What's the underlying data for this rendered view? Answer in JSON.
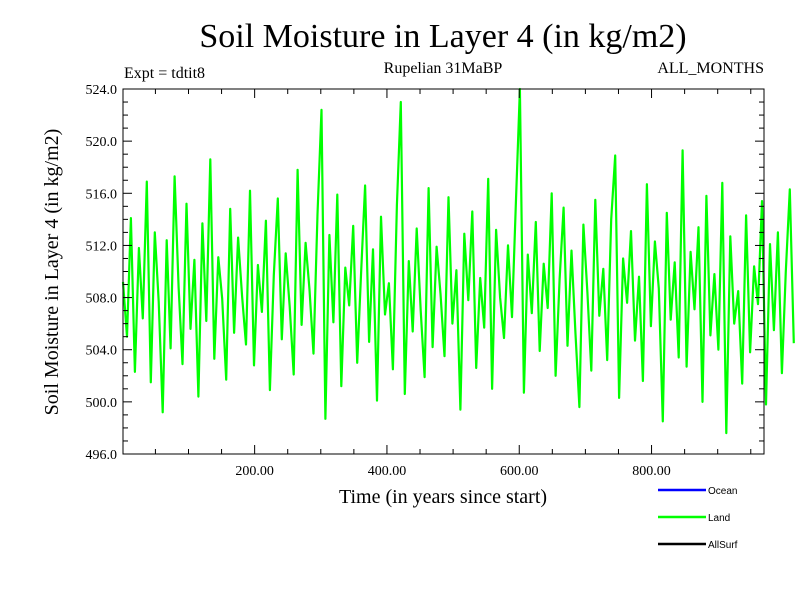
{
  "chart_data": {
    "type": "line",
    "title": "Soil Moisture in Layer 4 (in kg/m2)",
    "subtitle_left": "Expt = tdtit8",
    "subtitle_center": "Rupelian  31MaBP",
    "subtitle_right": "ALL_MONTHS",
    "xlabel": "Time (in years since start)",
    "ylabel": "Soil Moisture in Layer 4 (in kg/m2)",
    "xlim": [
      1,
      970
    ],
    "ylim": [
      496.0,
      524.0
    ],
    "x_ticks": [
      200,
      400,
      600,
      800
    ],
    "x_tick_labels": [
      "200.00",
      "400.00",
      "600.00",
      "800.00"
    ],
    "y_ticks": [
      496,
      500,
      504,
      508,
      512,
      516,
      520,
      524
    ],
    "y_tick_labels": [
      "496.0",
      "500.0",
      "504.0",
      "508.0",
      "512.0",
      "516.0",
      "520.0",
      "524.0"
    ],
    "legend_position": "bottom-right",
    "series": [
      {
        "name": "Ocean",
        "color": "#0000ff",
        "values": []
      },
      {
        "name": "Land",
        "color": "#00ff00",
        "x_start": 1,
        "x_step": 6,
        "values": [
          509.2,
          505.0,
          514.1,
          502.3,
          511.8,
          506.4,
          516.9,
          501.5,
          513.0,
          507.7,
          499.2,
          512.4,
          504.1,
          517.3,
          508.8,
          502.9,
          515.2,
          505.6,
          510.9,
          500.4,
          513.7,
          506.2,
          518.6,
          503.3,
          511.1,
          507.9,
          501.7,
          514.8,
          505.3,
          512.6,
          508.1,
          504.4,
          516.2,
          502.8,
          510.5,
          506.9,
          513.9,
          500.9,
          509.7,
          515.6,
          504.8,
          511.4,
          507.3,
          502.1,
          517.8,
          505.9,
          512.2,
          508.6,
          503.7,
          514.4,
          522.4,
          498.7,
          512.8,
          506.1,
          515.9,
          501.2,
          510.3,
          507.4,
          513.5,
          503.0,
          509.9,
          516.6,
          504.6,
          511.7,
          500.1,
          514.2,
          506.7,
          509.1,
          502.5,
          515.1,
          523.0,
          500.6,
          510.8,
          505.4,
          513.3,
          507.0,
          501.9,
          516.4,
          504.2,
          511.9,
          508.3,
          503.5,
          515.7,
          506.0,
          510.1,
          499.4,
          512.9,
          507.8,
          514.6,
          502.6,
          509.5,
          505.7,
          517.1,
          501.0,
          513.2,
          508.0,
          504.9,
          512.0,
          506.5,
          515.3,
          524.0,
          500.7,
          511.3,
          506.8,
          513.8,
          503.9,
          510.6,
          507.2,
          516.0,
          502.0,
          509.4,
          514.9,
          504.3,
          511.6,
          505.2,
          499.6,
          513.6,
          508.4,
          502.4,
          515.5,
          506.6,
          510.2,
          503.2,
          514.0,
          518.9,
          500.3,
          511.0,
          507.6,
          513.1,
          504.7,
          509.6,
          501.6,
          516.7,
          505.8,
          512.3,
          508.7,
          498.5,
          514.5,
          506.3,
          510.7,
          503.4,
          519.3,
          502.7,
          511.5,
          507.1,
          513.4,
          500.0,
          515.8,
          505.1,
          509.8,
          504.0,
          516.8,
          497.6,
          512.7,
          506.0,
          508.5,
          501.4,
          514.3,
          503.8,
          510.4,
          507.5,
          515.4,
          499.8,
          512.1,
          505.5,
          513.0,
          502.2,
          510.0,
          516.3,
          504.5
        ]
      },
      {
        "name": "AllSurf",
        "color": "#000000",
        "values": []
      }
    ]
  }
}
